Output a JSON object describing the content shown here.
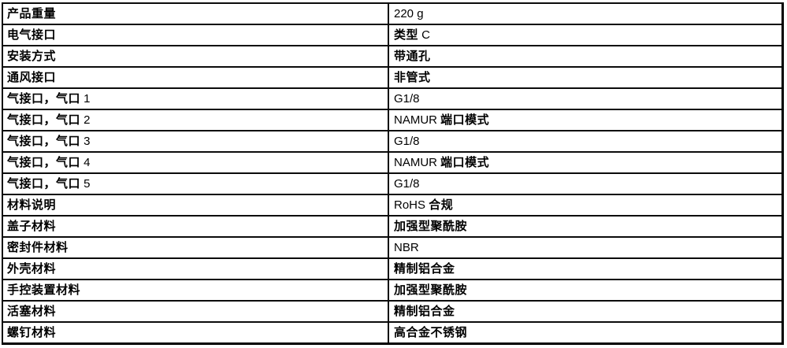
{
  "table": {
    "border_color": "#000000",
    "background": "#ffffff",
    "text_color": "#000000",
    "rows": [
      {
        "label": "产品重量",
        "value": "220 g"
      },
      {
        "label": "电气接口",
        "value": "类型 C"
      },
      {
        "label": "安装方式",
        "value": "带通孔"
      },
      {
        "label": "通风接口",
        "value": "非管式"
      },
      {
        "label": "气接口，气口 1",
        "value": "G1/8"
      },
      {
        "label": "气接口，气口 2",
        "value": "NAMUR 端口模式"
      },
      {
        "label": "气接口，气口 3",
        "value": "G1/8"
      },
      {
        "label": "气接口，气口 4",
        "value": "NAMUR 端口模式"
      },
      {
        "label": "气接口，气口 5",
        "value": "G1/8"
      },
      {
        "label": "材料说明",
        "value": "RoHS 合规"
      },
      {
        "label": "盖子材料",
        "value": "加强型聚酰胺"
      },
      {
        "label": "密封件材料",
        "value": "NBR"
      },
      {
        "label": "外壳材料",
        "value": "精制铝合金"
      },
      {
        "label": "手控装置材料",
        "value": "加强型聚酰胺"
      },
      {
        "label": "活塞材料",
        "value": "精制铝合金"
      },
      {
        "label": "螺钉材料",
        "value": "高合金不锈钢"
      }
    ]
  }
}
